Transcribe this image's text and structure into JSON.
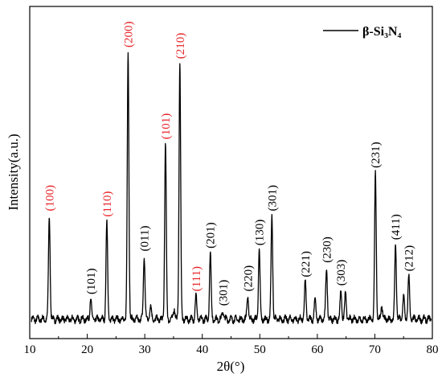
{
  "chart_data": {
    "type": "line",
    "xlabel": "2θ(°)",
    "ylabel": "Intensity(a.u.)",
    "xlim": [
      10,
      80
    ],
    "ylim": [
      0,
      100
    ],
    "x_ticks": [
      "10",
      "20",
      "30",
      "40",
      "50",
      "60",
      "70",
      "80"
    ],
    "grid": false,
    "legend_position": "top-right",
    "series": [
      {
        "name": "β-Si₃N₄",
        "color": "#000000",
        "peaks": [
          {
            "x": 13.4,
            "y": 36
          },
          {
            "x": 20.6,
            "y": 7
          },
          {
            "x": 23.4,
            "y": 34
          },
          {
            "x": 27.1,
            "y": 93
          },
          {
            "x": 29.9,
            "y": 22
          },
          {
            "x": 31.0,
            "y": 5
          },
          {
            "x": 33.6,
            "y": 61
          },
          {
            "x": 35.1,
            "y": 4
          },
          {
            "x": 36.1,
            "y": 89
          },
          {
            "x": 38.9,
            "y": 8
          },
          {
            "x": 41.4,
            "y": 23
          },
          {
            "x": 43.6,
            "y": 3
          },
          {
            "x": 47.9,
            "y": 8
          },
          {
            "x": 49.9,
            "y": 24
          },
          {
            "x": 52.1,
            "y": 36
          },
          {
            "x": 57.9,
            "y": 13
          },
          {
            "x": 59.6,
            "y": 7
          },
          {
            "x": 61.6,
            "y": 18
          },
          {
            "x": 64.1,
            "y": 10
          },
          {
            "x": 64.9,
            "y": 9
          },
          {
            "x": 70.1,
            "y": 51
          },
          {
            "x": 71.2,
            "y": 5
          },
          {
            "x": 73.6,
            "y": 26
          },
          {
            "x": 75.0,
            "y": 8
          },
          {
            "x": 75.9,
            "y": 15
          }
        ]
      }
    ],
    "annotations": [
      {
        "text": "(100)",
        "x": 13.4,
        "y": 36,
        "color": "#e8262b"
      },
      {
        "text": "(101)",
        "x": 20.6,
        "y": 7,
        "color": "#000000"
      },
      {
        "text": "(110)",
        "x": 23.4,
        "y": 34,
        "color": "#e8262b"
      },
      {
        "text": "(200)",
        "x": 27.1,
        "y": 93,
        "color": "#e8262b"
      },
      {
        "text": "(011)",
        "x": 29.9,
        "y": 22,
        "color": "#000000"
      },
      {
        "text": "(101)",
        "x": 33.6,
        "y": 61,
        "color": "#e8262b"
      },
      {
        "text": "(210)",
        "x": 36.1,
        "y": 89,
        "color": "#e8262b"
      },
      {
        "text": "(111)",
        "x": 38.9,
        "y": 8,
        "color": "#e8262b"
      },
      {
        "text": "(201)",
        "x": 41.4,
        "y": 23,
        "color": "#000000"
      },
      {
        "text": "(301)",
        "x": 43.6,
        "y": 3,
        "color": "#000000"
      },
      {
        "text": "(220)",
        "x": 47.9,
        "y": 8,
        "color": "#000000"
      },
      {
        "text": "(130)",
        "x": 49.9,
        "y": 24,
        "color": "#000000"
      },
      {
        "text": "(301)",
        "x": 52.1,
        "y": 36,
        "color": "#000000"
      },
      {
        "text": "(221)",
        "x": 57.9,
        "y": 13,
        "color": "#000000"
      },
      {
        "text": "(230)",
        "x": 61.6,
        "y": 18,
        "color": "#000000"
      },
      {
        "text": "(303)",
        "x": 64.1,
        "y": 10,
        "color": "#000000"
      },
      {
        "text": "(231)",
        "x": 70.1,
        "y": 51,
        "color": "#000000"
      },
      {
        "text": "(411)",
        "x": 73.6,
        "y": 26,
        "color": "#000000"
      },
      {
        "text": "(212)",
        "x": 75.9,
        "y": 15,
        "color": "#000000"
      }
    ]
  }
}
